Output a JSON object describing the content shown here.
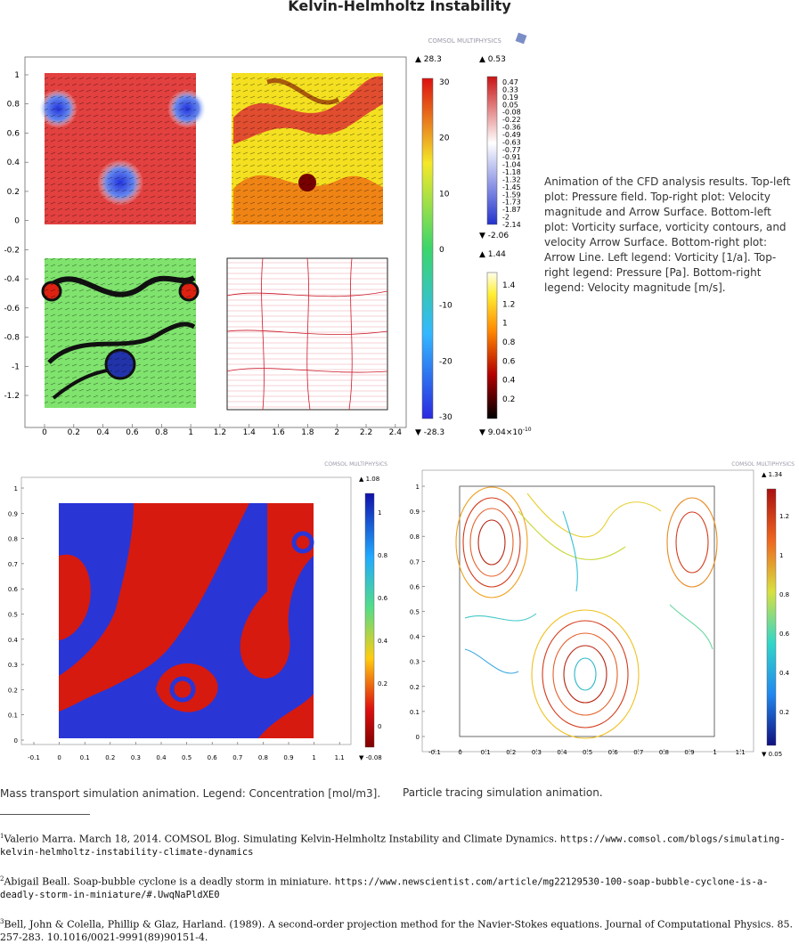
{
  "page_title": "Kelvin-Helmholtz Instability",
  "figure1": {
    "watermark": "COMSOL MULTIPHYSICS",
    "x_ticks": [
      "0",
      "0.2",
      "0.4",
      "0.6",
      "0.8",
      "1",
      "1.2",
      "1.4",
      "1.6",
      "1.8",
      "2",
      "2.2",
      "2.4"
    ],
    "y_ticks": [
      "1",
      "0.8",
      "0.6",
      "0.4",
      "0.2",
      "0",
      "-0.2",
      "-0.4",
      "-0.6",
      "-0.8",
      "-1",
      "-1.2"
    ],
    "legend_left": {
      "max": "▲ 28.3",
      "min": "▼ -28.3",
      "ticks": [
        "30",
        "20",
        "10",
        "0",
        "-10",
        "-20",
        "-30"
      ]
    },
    "legend_top_right": {
      "max": "▲ 0.53",
      "min": "▼ -2.06",
      "ticks": [
        "0.47",
        "0.33",
        "0.19",
        "0.05",
        "-0.08",
        "-0.22",
        "-0.36",
        "-0.49",
        "-0.63",
        "-0.77",
        "-0.91",
        "-1.04",
        "-1.18",
        "-1.32",
        "-1.45",
        "-1.59",
        "-1.73",
        "-1.87",
        "-2",
        "-2.14"
      ]
    },
    "legend_bottom_right": {
      "max": "▲ 1.44",
      "min": "▼ 9.04×10",
      "min_exp": "-10",
      "ticks": [
        "1.4",
        "1.2",
        "1",
        "0.8",
        "0.6",
        "0.4",
        "0.2"
      ]
    }
  },
  "figure1_caption": "Animation of the CFD analysis results. Top-left plot: Pressure field. Top-right plot: Velocity magnitude and Arrow Surface. Bottom-left plot: Vorticity surface, vorticity contours, and velocity Arrow Surface. Bottom-right plot: Arrow Line. Left legend: Vorticity [1/a]. Top-right legend: Pressure [Pa]. Bottom-right legend: Velocity magnitude [m/s].",
  "figure2": {
    "watermark": "COMSOL MULTIPHYSICS",
    "x_ticks": [
      "-0.1",
      "0",
      "0.1",
      "0.2",
      "0.3",
      "0.4",
      "0.5",
      "0.6",
      "0.7",
      "0.8",
      "0.9",
      "1",
      "1.1"
    ],
    "y_ticks": [
      "1",
      "0.9",
      "0.8",
      "0.7",
      "0.6",
      "0.5",
      "0.4",
      "0.3",
      "0.2",
      "0.1",
      "0"
    ],
    "legend": {
      "max": "▲ 1.08",
      "min": "▼ -0.08",
      "ticks": [
        "1",
        "0.8",
        "0.6",
        "0.4",
        "0.2",
        "0"
      ]
    }
  },
  "figure2_caption": "Mass transport simulation animation. Legend: Concentration [mol/m3].",
  "figure3": {
    "watermark": "COMSOL MULTIPHYSICS",
    "x_ticks": [
      "-0.1",
      "0",
      "0.1",
      "0.2",
      "0.3",
      "0.4",
      "0.5",
      "0.6",
      "0.7",
      "0.8",
      "0.9",
      "1",
      "1.1"
    ],
    "y_ticks": [
      "1",
      "0.9",
      "0.8",
      "0.7",
      "0.6",
      "0.5",
      "0.4",
      "0.3",
      "0.2",
      "0.1",
      "0"
    ],
    "legend": {
      "max": "▲ 1.34",
      "min": "▼ 0.05",
      "ticks": [
        "1.2",
        "1",
        "0.8",
        "0.6",
        "0.4",
        "0.2"
      ]
    }
  },
  "figure3_caption": "Particle tracing simulation animation.",
  "footnotes": [
    {
      "num": "1",
      "text": "Valerio Marra. March 18, 2014. COMSOL Blog. Simulating Kelvin-Helmholtz Instability and Climate Dynamics. ",
      "url": "https://www.comsol.com/blogs/simulating-kelvin-helmholtz-instability-climate-dynamics"
    },
    {
      "num": "2",
      "text": "Abigail Beall. Soap-bubble cyclone is a deadly storm in miniature. ",
      "url": "https://www.newscientist.com/article/mg22129530-100-soap-bubble-cyclone-is-a-deadly-storm-in-miniature/#.UwqNaPldXE0"
    },
    {
      "num": "3",
      "text": "Bell, John & Colella, Phillip & Glaz, Harland. (1989). A second-order projection method for the Navier-Stokes equations. Journal of Computational Physics. 85. 257-283. 10.1016/0021-9991(89)90151-4.",
      "url": ""
    }
  ]
}
